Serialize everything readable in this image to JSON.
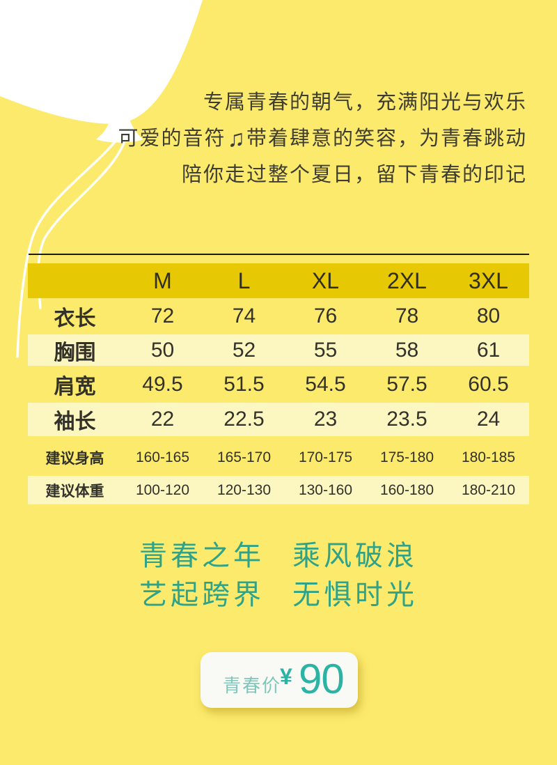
{
  "colors": {
    "background": "#FCEA6C",
    "header_gold": "#E6C805",
    "row_pale": "#FCF6C0",
    "slogan_teal": "#2FA287",
    "price_teal": "#2CB3A4",
    "divider_black": "#1D1C17",
    "balloon_white": "#FFFFFF"
  },
  "intro": {
    "line1": "专属青春的朝气，充满阳光与欢乐",
    "line2_pre": "可爱的音符",
    "note_icon": "♫",
    "line2_post": "带着肆意的笑容，为青春跳动",
    "line3": "陪你走过整个夏日，留下青春的印记"
  },
  "size_table": {
    "columns": [
      "M",
      "L",
      "XL",
      "2XL",
      "3XL"
    ],
    "rows": [
      {
        "label": "衣长",
        "values": [
          "72",
          "74",
          "76",
          "78",
          "80"
        ],
        "small": false
      },
      {
        "label": "胸围",
        "values": [
          "50",
          "52",
          "55",
          "58",
          "61"
        ],
        "small": false
      },
      {
        "label": "肩宽",
        "values": [
          "49.5",
          "51.5",
          "54.5",
          "57.5",
          "60.5"
        ],
        "small": false
      },
      {
        "label": "袖长",
        "values": [
          "22",
          "22.5",
          "23",
          "23.5",
          "24"
        ],
        "small": false
      },
      {
        "label": "建议身高",
        "values": [
          "160-165",
          "165-170",
          "170-175",
          "175-180",
          "180-185"
        ],
        "small": true
      },
      {
        "label": "建议体重",
        "values": [
          "100-120",
          "120-130",
          "130-160",
          "160-180",
          "180-210"
        ],
        "small": true
      }
    ]
  },
  "slogan": {
    "line1_left": "青春之年",
    "line1_right": "乘风破浪",
    "line2_left": "艺起跨界",
    "line2_right": "无惧时光"
  },
  "price": {
    "label": "青春价",
    "currency": "¥",
    "amount": "90"
  }
}
